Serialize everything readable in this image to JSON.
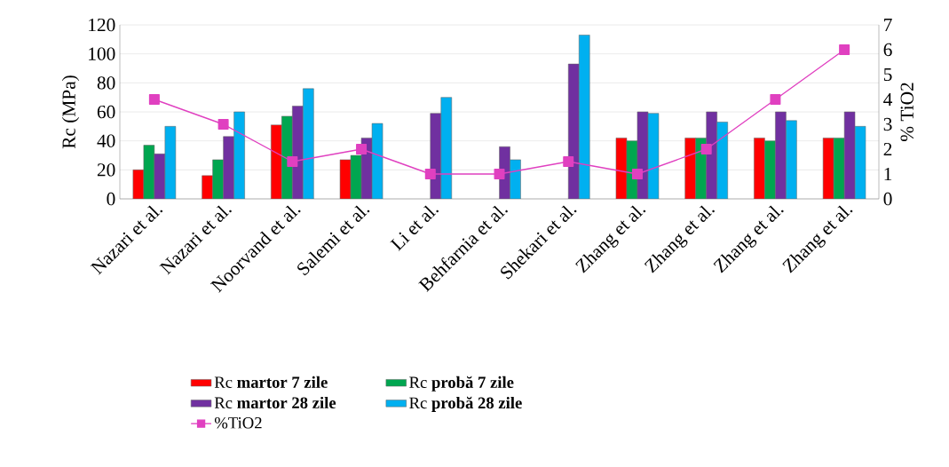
{
  "chart_data": {
    "type": "bar",
    "ylabel": "Rc (MPa)",
    "y2label": "% TiO2",
    "categories": [
      "Nazari et al.",
      "Nazari et al.",
      "Noorvand et al.",
      "Salemi et al.",
      "Li et al.",
      "Behfarnia et al.",
      "Shekari et al.",
      "Zhang et al.",
      "Zhang et al.",
      "Zhang et al.",
      "Zhang et al."
    ],
    "series": [
      {
        "name": "Rc  **martor 7 zile**",
        "color": "#ff0000",
        "values": [
          20,
          16,
          51,
          27,
          null,
          null,
          null,
          42,
          42,
          42,
          42
        ]
      },
      {
        "name": "Rc  **probă 7 zile**",
        "color": "#00a650",
        "values": [
          37,
          27,
          57,
          30,
          null,
          null,
          null,
          40,
          42,
          40,
          42
        ]
      },
      {
        "name": "Rc  **martor 28 zile**",
        "color": "#7030a0",
        "values": [
          31,
          43,
          64,
          42,
          59,
          36,
          93,
          60,
          60,
          60,
          60
        ]
      },
      {
        "name": "Rc  **probă 28 zile**",
        "color": "#00b0f0",
        "values": [
          50,
          60,
          76,
          52,
          70,
          27,
          113,
          59,
          53,
          54,
          50
        ]
      },
      {
        "name": "%TiO2",
        "type": "line",
        "axis": "y2",
        "color": "#e040c0",
        "marker": "square",
        "line_style": "solid",
        "values": [
          4,
          3,
          1.5,
          2,
          1,
          1,
          1.5,
          1,
          2,
          4,
          6
        ]
      }
    ],
    "ylim": [
      0,
      120
    ],
    "yticks": [
      0,
      20,
      40,
      60,
      80,
      100,
      120
    ],
    "y2lim": [
      0,
      7
    ],
    "y2ticks": [
      0,
      1,
      2,
      3,
      4,
      5,
      6,
      7
    ],
    "grid": "y",
    "legend": "bottom"
  }
}
